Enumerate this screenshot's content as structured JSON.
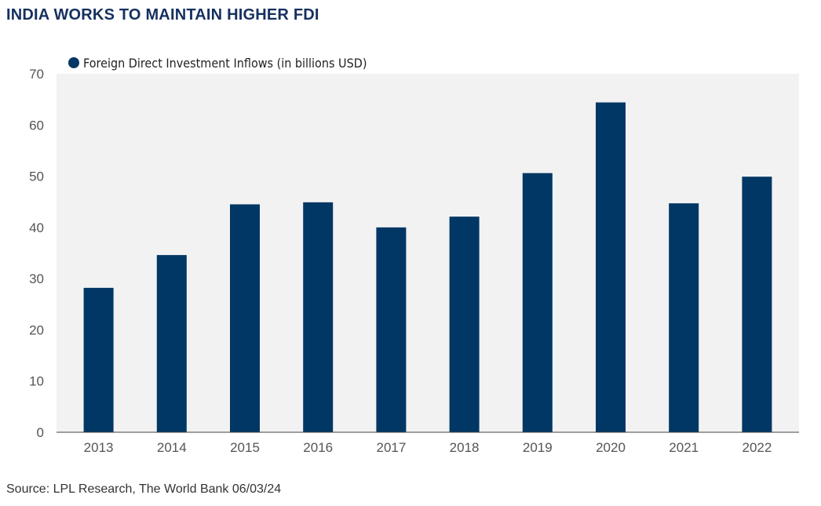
{
  "title": "INDIA WORKS TO MAINTAIN HIGHER FDI",
  "source": "Source: LPL Research, The World Bank 06/03/24",
  "colors": {
    "bar": "#003764",
    "plot_background": "#f2f2f2",
    "title": "#15305f"
  },
  "chart_data": {
    "type": "bar",
    "categories": [
      "2013",
      "2014",
      "2015",
      "2016",
      "2017",
      "2018",
      "2019",
      "2020",
      "2021",
      "2022"
    ],
    "series": [
      {
        "name": "Foreign Direct Investment Inflows (in billions USD)",
        "values": [
          28.2,
          34.6,
          44.5,
          44.9,
          40.0,
          42.1,
          50.6,
          64.4,
          44.7,
          49.9
        ]
      }
    ],
    "ylim": [
      0,
      70
    ],
    "yticks": [
      0,
      10,
      20,
      30,
      40,
      50,
      60,
      70
    ],
    "grid": false,
    "legend_position": "top-left"
  }
}
